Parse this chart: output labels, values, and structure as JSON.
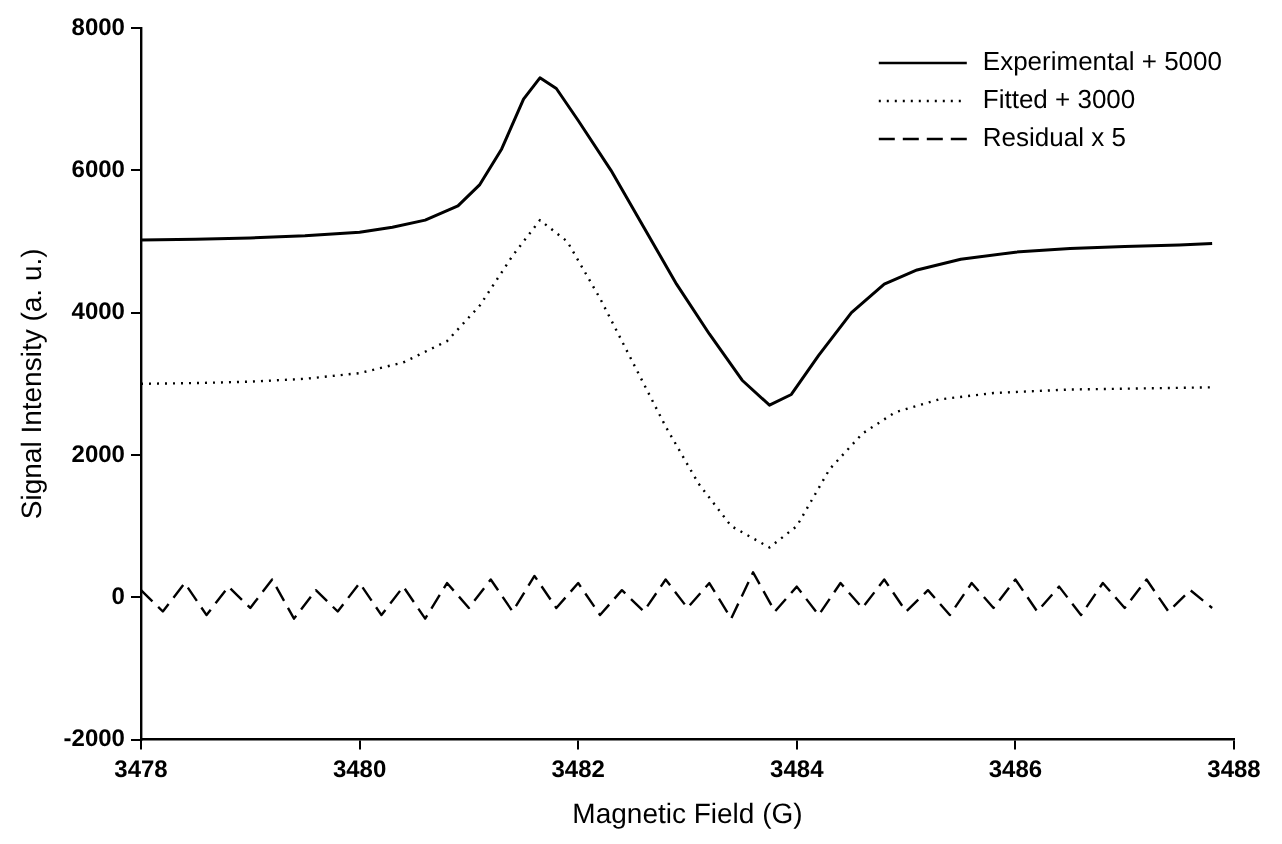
{
  "chart_data": {
    "type": "line",
    "xlabel": "Magnetic Field (G)",
    "ylabel": "Signal Intensity (a. u.)",
    "xlim": [
      3478,
      3488
    ],
    "xticks": [
      3478,
      3480,
      3482,
      3484,
      3486,
      3488
    ],
    "ylim": [
      -2000,
      8000
    ],
    "yticks": [
      -2000,
      0,
      2000,
      4000,
      6000,
      8000
    ],
    "grid": false,
    "legend": "top right",
    "marker": "none",
    "series": [
      {
        "name": "Experimental + 5000",
        "color": "#000000",
        "line_style": "solid",
        "x": [
          3478,
          3478.5,
          3479,
          3479.5,
          3480,
          3480.3,
          3480.6,
          3480.9,
          3481.1,
          3481.3,
          3481.5,
          3481.65,
          3481.8,
          3482,
          3482.3,
          3482.6,
          3482.9,
          3483.2,
          3483.5,
          3483.75,
          3483.95,
          3484.2,
          3484.5,
          3484.8,
          3485.1,
          3485.5,
          3486,
          3486.5,
          3487,
          3487.5,
          3487.8
        ],
        "values": [
          5020,
          5030,
          5050,
          5080,
          5130,
          5200,
          5300,
          5500,
          5800,
          6300,
          7000,
          7300,
          7150,
          6700,
          6000,
          5200,
          4400,
          3700,
          3050,
          2700,
          2850,
          3400,
          4000,
          4400,
          4600,
          4750,
          4850,
          4900,
          4930,
          4950,
          4970
        ]
      },
      {
        "name": "Fitted + 3000",
        "color": "#000000",
        "line_style": "dotted",
        "x": [
          3478,
          3478.5,
          3479,
          3479.5,
          3480,
          3480.4,
          3480.8,
          3481.1,
          3481.4,
          3481.65,
          3481.9,
          3482.2,
          3482.5,
          3482.8,
          3483.1,
          3483.4,
          3483.75,
          3484,
          3484.3,
          3484.6,
          3484.9,
          3485.3,
          3485.8,
          3486.5,
          3487.8
        ],
        "values": [
          3000,
          3010,
          3030,
          3070,
          3150,
          3300,
          3600,
          4100,
          4800,
          5300,
          5000,
          4200,
          3300,
          2400,
          1600,
          1000,
          700,
          1000,
          1800,
          2300,
          2600,
          2780,
          2870,
          2920,
          2950
        ]
      },
      {
        "name": "Residual x 5",
        "color": "#000000",
        "line_style": "dashed",
        "x": [
          3478,
          3478.2,
          3478.4,
          3478.6,
          3478.8,
          3479,
          3479.2,
          3479.4,
          3479.6,
          3479.8,
          3480,
          3480.2,
          3480.4,
          3480.6,
          3480.8,
          3481,
          3481.2,
          3481.4,
          3481.6,
          3481.8,
          3482,
          3482.2,
          3482.4,
          3482.6,
          3482.8,
          3483,
          3483.2,
          3483.4,
          3483.6,
          3483.8,
          3484,
          3484.2,
          3484.4,
          3484.6,
          3484.8,
          3485,
          3485.2,
          3485.4,
          3485.6,
          3485.8,
          3486,
          3486.2,
          3486.4,
          3486.6,
          3486.8,
          3487,
          3487.2,
          3487.4,
          3487.6,
          3487.8
        ],
        "values": [
          100,
          -200,
          200,
          -250,
          150,
          -150,
          250,
          -300,
          100,
          -200,
          200,
          -250,
          150,
          -300,
          200,
          -150,
          250,
          -200,
          300,
          -150,
          200,
          -250,
          100,
          -200,
          250,
          -150,
          200,
          -300,
          350,
          -200,
          150,
          -250,
          200,
          -150,
          250,
          -200,
          100,
          -250,
          200,
          -150,
          250,
          -200,
          150,
          -250,
          200,
          -150,
          250,
          -200,
          100,
          -150
        ]
      }
    ]
  }
}
